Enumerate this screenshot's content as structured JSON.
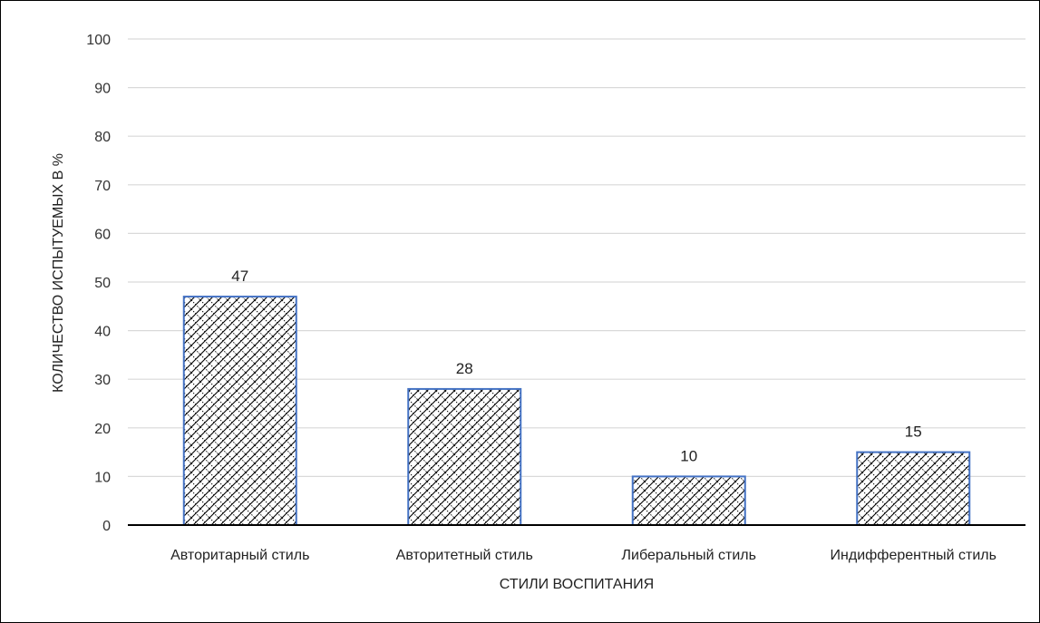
{
  "chart_data": {
    "type": "bar",
    "categories": [
      "Авторитарный стиль",
      "Авторитетный стиль",
      "Либеральный стиль",
      "Индифферентный стиль"
    ],
    "values": [
      47,
      28,
      10,
      15
    ],
    "data_labels": [
      "47",
      "28",
      "10",
      "15"
    ],
    "title": "",
    "xlabel": "СТИЛИ ВОСПИТАНИЯ",
    "ylabel": "КОЛИЧЕСТВО ИСПЫТУЕМЫХ В %",
    "ylim": [
      0,
      100
    ],
    "yticks": [
      0,
      10,
      20,
      30,
      40,
      50,
      60,
      70,
      80,
      90,
      100
    ],
    "ytick_labels": [
      "0",
      "10",
      "20",
      "30",
      "40",
      "50",
      "60",
      "70",
      "80",
      "90",
      "100"
    ],
    "grid": true,
    "legend": "none",
    "bar_fill": "crosshatch",
    "colors": {
      "bar_border": "#4472C4",
      "hatch": "#000000",
      "grid": "#D9D9D9",
      "axis": "#000000",
      "text": "#222222"
    }
  }
}
